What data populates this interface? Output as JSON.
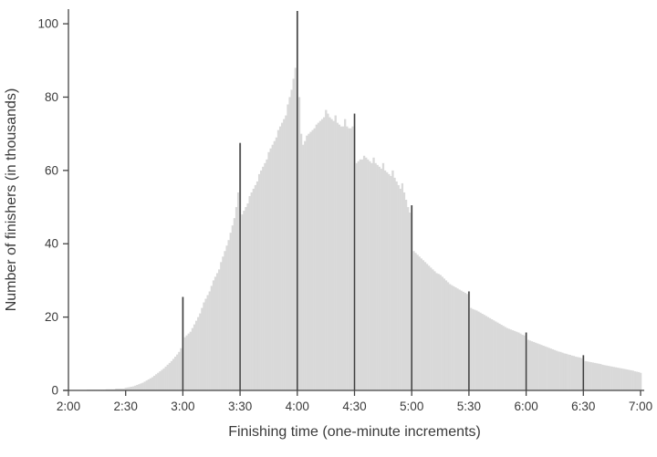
{
  "chart_data": {
    "type": "bar",
    "title": "",
    "xlabel": "Finishing time (one-minute increments)",
    "ylabel": "Number of finishers (in thousands)",
    "x_start_minutes": 120,
    "x_end_minutes": 420,
    "x_tick_minutes": [
      120,
      150,
      180,
      210,
      240,
      270,
      300,
      330,
      360,
      390,
      420
    ],
    "x_tick_labels": [
      "2:00",
      "2:30",
      "3:00",
      "3:30",
      "4:00",
      "4:30",
      "5:00",
      "5:30",
      "6:00",
      "6:30",
      "7:00"
    ],
    "y_ticks": [
      0,
      20,
      40,
      60,
      80,
      100
    ],
    "ylim": [
      0,
      104
    ],
    "grid": false,
    "legend": "none",
    "highlight_minutes": [
      180,
      210,
      240,
      270,
      300,
      330,
      360,
      390
    ],
    "bar_color": "#d9d9d9",
    "highlight_color": "#3f3f3f",
    "axis_color": "#454545",
    "label_color": "#3a3a3a",
    "values": [
      0.1,
      0.1,
      0.1,
      0.1,
      0.1,
      0.1,
      0.1,
      0.1,
      0.1,
      0.1,
      0.2,
      0.2,
      0.2,
      0.2,
      0.2,
      0.2,
      0.2,
      0.2,
      0.2,
      0.2,
      0.3,
      0.3,
      0.3,
      0.3,
      0.3,
      0.5,
      0.5,
      0.5,
      0.5,
      0.5,
      0.7,
      0.8,
      0.9,
      1.0,
      1.1,
      1.3,
      1.5,
      1.7,
      1.9,
      2.1,
      2.4,
      2.7,
      3.0,
      3.3,
      3.6,
      4.0,
      4.4,
      4.8,
      5.2,
      5.6,
      6.0,
      6.5,
      7.0,
      7.5,
      8.0,
      8.6,
      9.2,
      9.8,
      10.5,
      11.5,
      25.5,
      14.5,
      15.0,
      15.5,
      16.0,
      17.0,
      18.0,
      19.0,
      20.0,
      21.0,
      22.5,
      24.0,
      25.0,
      26.0,
      27.0,
      28.5,
      30.0,
      31.0,
      32.0,
      33.0,
      35.0,
      36.5,
      38.0,
      39.5,
      41.0,
      43.0,
      45.0,
      47.0,
      50.0,
      54.0,
      67.5,
      48.0,
      49.0,
      50.0,
      51.0,
      53.0,
      54.0,
      55.0,
      56.0,
      57.0,
      59.0,
      60.0,
      61.0,
      62.0,
      63.0,
      65.0,
      66.0,
      67.0,
      68.0,
      69.0,
      71.0,
      72.0,
      73.0,
      74.0,
      75.0,
      78.0,
      80.0,
      82.0,
      85.0,
      88.0,
      103.5,
      80.0,
      70.0,
      67.0,
      68.0,
      69.5,
      70.0,
      70.5,
      71.0,
      71.5,
      72.5,
      73.0,
      73.5,
      74.0,
      74.5,
      76.5,
      75.5,
      74.5,
      74.0,
      73.5,
      75.0,
      73.0,
      72.5,
      72.0,
      72.0,
      74.0,
      72.0,
      71.5,
      71.5,
      72.0,
      75.5,
      62.0,
      62.5,
      63.0,
      63.0,
      64.0,
      63.5,
      63.0,
      62.5,
      62.0,
      63.5,
      62.0,
      61.5,
      61.0,
      60.5,
      62.0,
      60.0,
      59.5,
      59.0,
      58.5,
      60.0,
      58.0,
      57.0,
      56.0,
      55.0,
      56.5,
      54.0,
      52.0,
      50.0,
      48.5,
      50.5,
      38.0,
      37.5,
      37.0,
      36.5,
      36.0,
      35.5,
      35.0,
      34.5,
      34.0,
      33.5,
      33.0,
      32.5,
      32.0,
      31.8,
      31.5,
      31.0,
      30.5,
      30.0,
      29.5,
      29.0,
      28.7,
      28.4,
      28.1,
      27.8,
      27.5,
      27.2,
      26.9,
      26.6,
      26.3,
      27.0,
      22.5,
      22.2,
      22.0,
      21.8,
      21.5,
      21.2,
      20.9,
      20.6,
      20.3,
      20.0,
      19.7,
      19.4,
      19.1,
      18.8,
      18.5,
      18.2,
      17.9,
      17.6,
      17.3,
      17.0,
      16.8,
      16.6,
      16.4,
      16.2,
      16.0,
      15.8,
      15.5,
      15.2,
      15.0,
      15.8,
      13.8,
      13.6,
      13.4,
      13.2,
      13.0,
      12.8,
      12.6,
      12.4,
      12.2,
      12.0,
      11.8,
      11.6,
      11.4,
      11.2,
      11.0,
      10.8,
      10.6,
      10.5,
      10.3,
      10.1,
      10.0,
      9.8,
      9.7,
      9.5,
      9.4,
      9.2,
      9.1,
      9.0,
      8.8,
      9.6,
      8.0,
      7.9,
      7.8,
      7.7,
      7.6,
      7.5,
      7.4,
      7.3,
      7.2,
      7.0,
      6.9,
      6.8,
      6.7,
      6.6,
      6.5,
      6.4,
      6.3,
      6.2,
      6.1,
      6.0,
      5.9,
      5.8,
      5.7,
      5.6,
      5.5,
      5.4,
      5.2,
      5.1,
      5.0,
      4.8
    ]
  }
}
